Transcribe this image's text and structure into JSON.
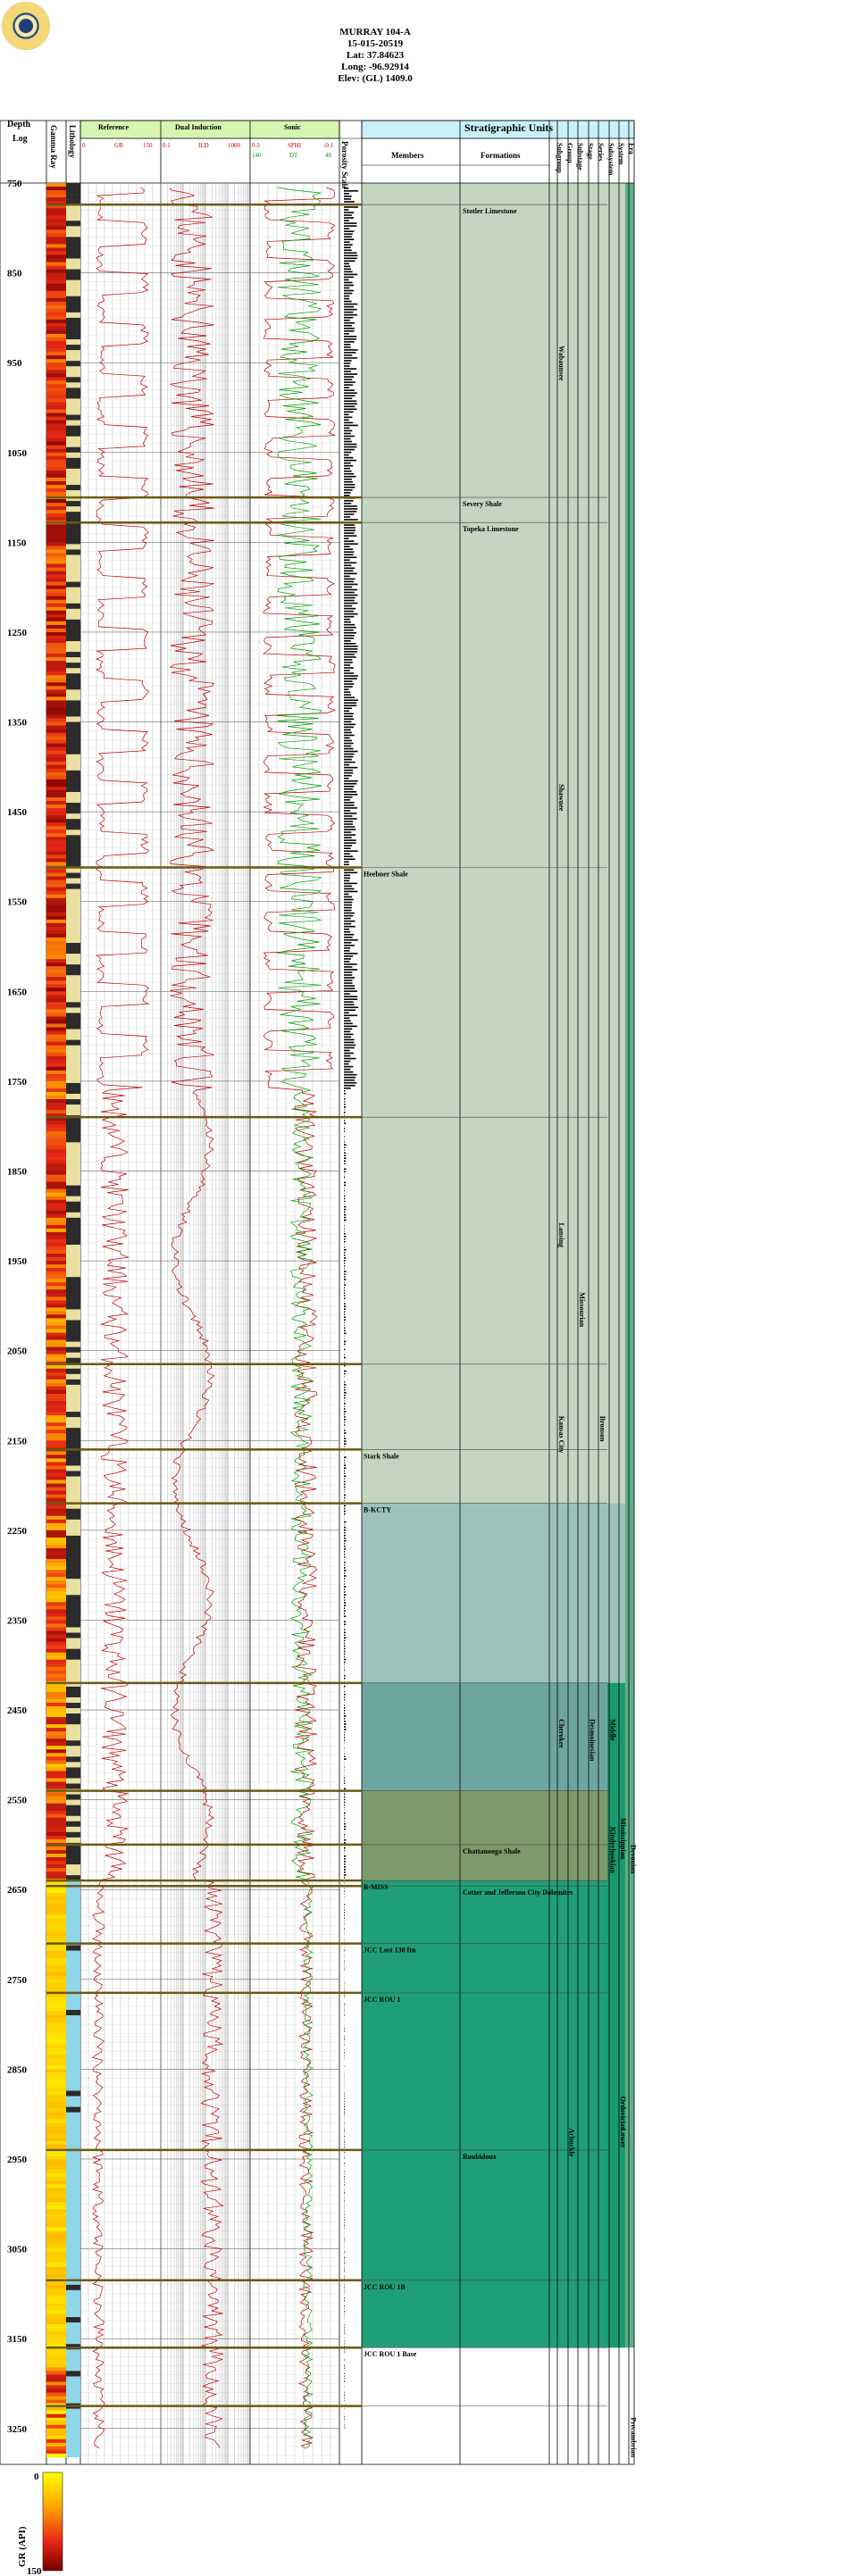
{
  "header": {
    "well_name": "MURRAY 104-A",
    "api": "15-015-20519",
    "lat": "Lat: 37.84623",
    "long": "Long: -96.92914",
    "elev": "Elev: (GL) 1409.0"
  },
  "logo": {
    "name": "state-seal"
  },
  "columns": {
    "depth": "Depth",
    "log": "Log",
    "gamma": "Gamma Ray",
    "lithology": "Lithology",
    "reference": "Reference",
    "reference_curve": "GR",
    "reference_min": "0",
    "reference_max": "150",
    "induction": "Dual Induction",
    "induction_curve": "ILD",
    "induction_min": "0.1",
    "induction_max": "1000",
    "sonic": "Sonic",
    "sonic_curve1": "SPHI",
    "sonic_curve1_min": "0.3",
    "sonic_curve1_max": "-0.1",
    "sonic_curve2": "DT",
    "sonic_curve2_min": "140",
    "sonic_curve2_max": "40",
    "porosity": "Porosity Scale",
    "strat_title": "Stratigraphic Units",
    "members": "Members",
    "formations": "Formations",
    "hierarchy": [
      "Subgroup",
      "Group",
      "Substage",
      "Stage",
      "Series",
      "Subsystem",
      "System",
      "Era"
    ]
  },
  "depth_ticks": [
    "750",
    "850",
    "950",
    "1050",
    "1150",
    "1250",
    "1350",
    "1450",
    "1550",
    "1650",
    "1750",
    "1850",
    "1950",
    "2050",
    "2150",
    "2250",
    "2350",
    "2450",
    "2550",
    "2650",
    "2750",
    "2850",
    "2950",
    "3050",
    "3150",
    "3250"
  ],
  "tops": [
    {
      "name": "Stotler Limestone",
      "depth": 774,
      "col": "formation"
    },
    {
      "name": "Severy Shale",
      "depth": 1100,
      "col": "formation"
    },
    {
      "name": "Topeka Limestone",
      "depth": 1128,
      "col": "formation"
    },
    {
      "name": "Heebner Shale",
      "depth": 1512,
      "col": "member"
    },
    {
      "name": "",
      "depth": 1790,
      "col": "none"
    },
    {
      "name": "",
      "depth": 2065,
      "col": "none"
    },
    {
      "name": "Stark Shale",
      "depth": 2160,
      "col": "member"
    },
    {
      "name": "B-KCTY",
      "depth": 2220,
      "col": "member"
    },
    {
      "name": "",
      "depth": 2420,
      "col": "none"
    },
    {
      "name": "",
      "depth": 2540,
      "col": "none"
    },
    {
      "name": "Chattanooga Shale",
      "depth": 2600,
      "col": "formation"
    },
    {
      "name": "B-MISS",
      "depth": 2640,
      "col": "member"
    },
    {
      "name": "Cotter and Jefferson City Dolomites",
      "depth": 2646,
      "col": "formation"
    },
    {
      "name": "JCC Lost 130 ftn",
      "depth": 2710,
      "col": "member"
    },
    {
      "name": "JCC ROU 1",
      "depth": 2765,
      "col": "member"
    },
    {
      "name": "Roubidoux",
      "depth": 2940,
      "col": "formation"
    },
    {
      "name": "JCC ROU 1B",
      "depth": 3085,
      "col": "member"
    },
    {
      "name": "JCC ROU 1 Base",
      "depth": 3160,
      "col": "member"
    },
    {
      "name": "",
      "depth": 3225,
      "col": "none"
    }
  ],
  "strat_labels": [
    {
      "text": "Shawnee",
      "col": 0,
      "d1": 1128,
      "d2": 1750
    },
    {
      "text": "Wabaunsee",
      "col": 0,
      "d1": 774,
      "d2": 1128
    },
    {
      "text": "Lansing",
      "col": 0,
      "d1": 1790,
      "d2": 2065
    },
    {
      "text": "Kansas City",
      "col": 0,
      "d1": 2065,
      "d2": 2220
    },
    {
      "text": "Cherokee",
      "col": 0,
      "d1": 2420,
      "d2": 2540
    },
    {
      "text": "Arbuckle",
      "col": 1,
      "d1": 2646,
      "d2": 3225
    },
    {
      "text": "Missourian",
      "col": 2,
      "d1": 1790,
      "d2": 2220
    },
    {
      "text": "Desmoinesian",
      "col": 3,
      "d1": 2420,
      "d2": 2540
    },
    {
      "text": "Bronson",
      "col": 4,
      "d1": 2065,
      "d2": 2220
    },
    {
      "text": "Middle",
      "col": 5,
      "d1": 2420,
      "d2": 2540
    },
    {
      "text": "Kinderhookian",
      "col": 5,
      "d1": 2560,
      "d2": 2640
    },
    {
      "text": "Mississippian",
      "col": 6,
      "d1": 2540,
      "d2": 2640
    },
    {
      "text": "Lower",
      "col": 6,
      "d1": 2646,
      "d2": 3225
    },
    {
      "text": "Ordovician",
      "col": 6,
      "d1": 2800,
      "d2": 3000
    },
    {
      "text": "Devonian",
      "col": 7,
      "d1": 2600,
      "d2": 2640
    },
    {
      "text": "Precambrian",
      "col": 7,
      "d1": 3225,
      "d2": 3290
    }
  ],
  "zones": [
    {
      "d1": 750,
      "d2": 2220,
      "color": "#c5d6c0"
    },
    {
      "d1": 2220,
      "d2": 2420,
      "color": "#9cc3bb"
    },
    {
      "d1": 2420,
      "d2": 2540,
      "color": "#6fa59f"
    },
    {
      "d1": 2540,
      "d2": 2640,
      "color": "#7e9a6a"
    },
    {
      "d1": 2640,
      "d2": 3160,
      "color": "#1f9f78"
    },
    {
      "d1": 3160,
      "d2": 3290,
      "color": "#ffffff"
    }
  ],
  "legend": {
    "title": "GR (API)",
    "min": "0",
    "max": "150"
  },
  "colors": {
    "grid": "#8a8a8a",
    "gr": "#c00000",
    "dt": "#00a000",
    "tops": "#6b5a14",
    "header_band": "#d6f5b0",
    "strat_header": "#c8f0f7"
  }
}
